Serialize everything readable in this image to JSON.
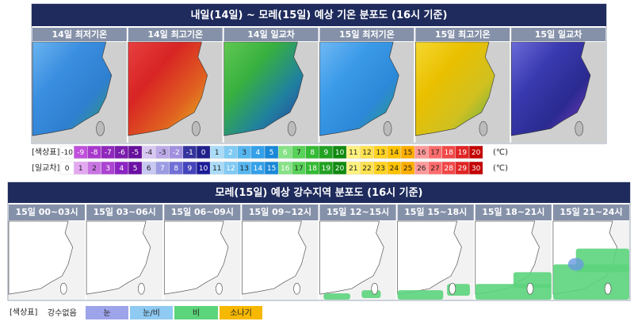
{
  "temperature_section": {
    "title": "내일(14일) ~ 모레(15일) 예상 기온 분포도 (16시 기준)",
    "panels": [
      "14일 최저기온",
      "14일 최고기온",
      "14일 일교차",
      "15일 최저기온",
      "15일 최고기온",
      "15일 일교차"
    ],
    "legend": [
      {
        "label": "[색상표]",
        "values": [
          -10,
          -9,
          -8,
          -7,
          -6,
          -5,
          -4,
          -3,
          -2,
          -1,
          0,
          1,
          2,
          3,
          4,
          5,
          6,
          7,
          8,
          9,
          10,
          11,
          12,
          13,
          14,
          15,
          16,
          17,
          18,
          19,
          20
        ],
        "unit": "(℃)"
      },
      {
        "label": "[일교차]",
        "values": [
          0,
          1,
          2,
          3,
          4,
          5,
          6,
          7,
          8,
          9,
          10,
          11,
          12,
          13,
          14,
          15,
          16,
          17,
          18,
          19,
          20,
          21,
          22,
          23,
          24,
          25,
          26,
          27,
          28,
          29,
          30
        ],
        "unit": "(℃)"
      }
    ]
  },
  "precipitation_section": {
    "title": "모레(15일) 예상 강수지역 분포도 (16시 기준)",
    "panels": [
      "15일 00~03시",
      "15일 03~06시",
      "15일 06~09시",
      "15일 09~12시",
      "15일 12~15시",
      "15일 15~18시",
      "15일 18~21시",
      "15일 21~24시"
    ],
    "legend": {
      "label": "[색상표]",
      "items": [
        "강수없음",
        "눈",
        "눈/비",
        "비",
        "소나기"
      ]
    }
  }
}
